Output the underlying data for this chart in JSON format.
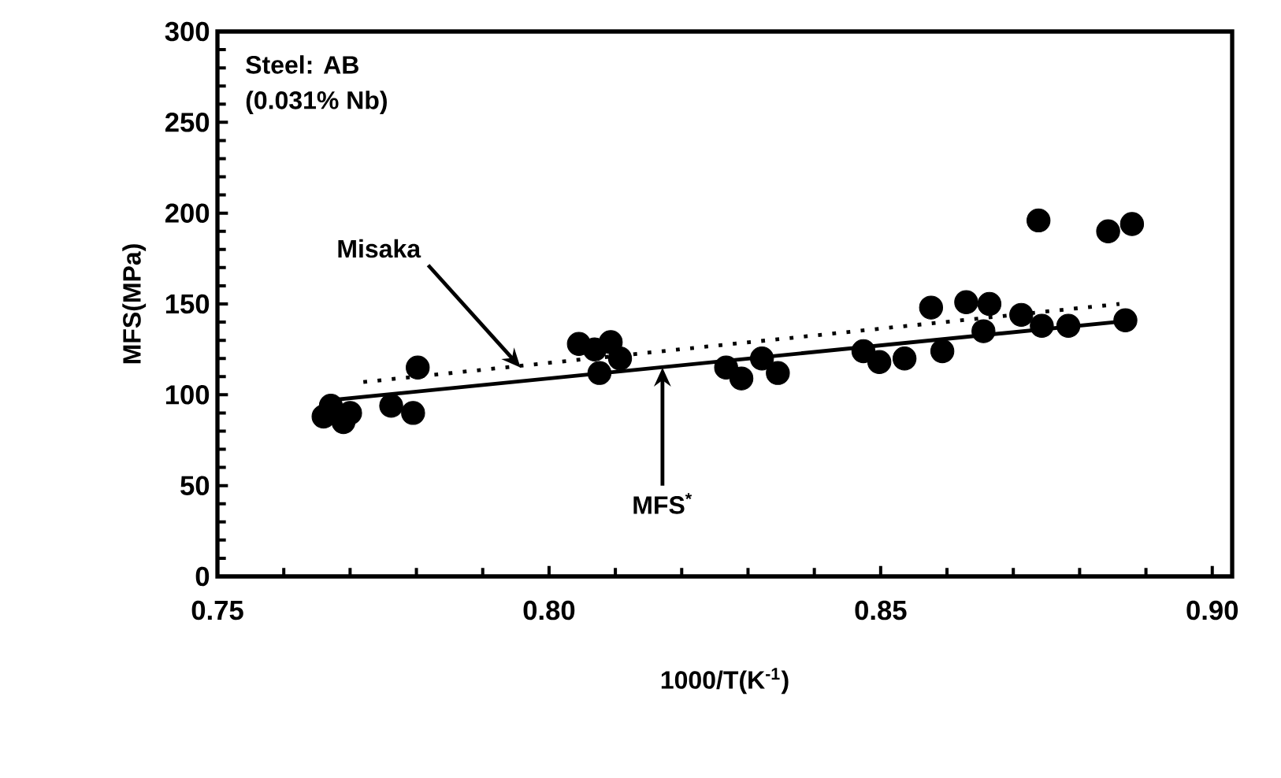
{
  "chart_data": {
    "type": "scatter",
    "xlabel": "1000/T(K$^{-1}$)",
    "ylabel": "MFS(MPa)",
    "xlim": [
      0.75,
      0.903
    ],
    "ylim": [
      0,
      300
    ],
    "xticks": [
      0.75,
      {
        "value": 0.8,
        "label": "0.80"
      },
      0.85,
      {
        "value": 0.9,
        "label": "0.90"
      }
    ],
    "yticks": [
      0,
      50,
      100,
      150,
      200,
      250,
      300
    ],
    "marker": "circle",
    "series": [
      {
        "color": "#000000",
        "x": [
          0.766,
          0.7671,
          0.77,
          0.769,
          0.7762,
          0.7786,
          0.7802,
          0.7795,
          0.8069,
          0.8045,
          0.8093,
          0.8076,
          0.8107,
          0.8267,
          0.829,
          0.8321,
          0.8345,
          0.8474,
          0.8498,
          0.8536,
          0.8576,
          0.8593,
          0.8629,
          0.8664,
          0.8655,
          0.8743,
          0.8783,
          0.8869,
          0.8738,
          0.8843,
          0.8879,
          0.8712
        ],
        "values": [
          88,
          94,
          90,
          85,
          94,
          null,
          115,
          90,
          125,
          128,
          129,
          112,
          120,
          115,
          109,
          120,
          112,
          124,
          118,
          120,
          148,
          124,
          151,
          150,
          135,
          138,
          138,
          141,
          196,
          190,
          194,
          144
        ]
      },
      {
        "type": "line",
        "color": "#000000",
        "marker": "none",
        "line_style": "solid",
        "x": [
          0.767,
          0.888
        ],
        "values": [
          97,
          141
        ]
      },
      {
        "type": "line",
        "color": "#000000",
        "marker": "none",
        "line_style": "dotted",
        "x": [
          0.772,
          0.886
        ],
        "values": [
          107,
          150
        ]
      }
    ],
    "annotations": [
      "Steel: AB",
      "(0.031% Nb)",
      {
        "text": "Misaka",
        "x": 0.7957,
        "y": 115
      },
      {
        "text": "MFS$^{*}$",
        "x": 0.8171,
        "y": 115
      }
    ]
  }
}
